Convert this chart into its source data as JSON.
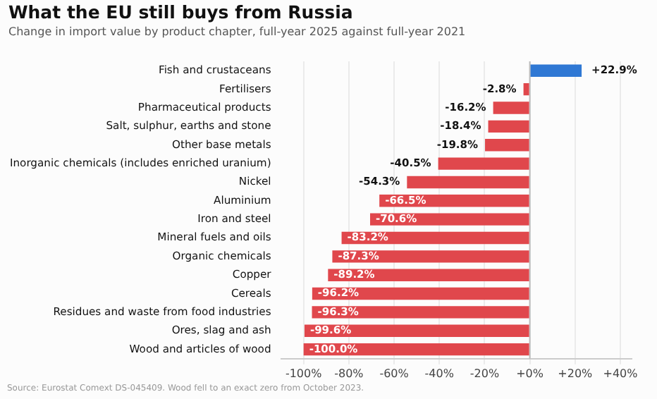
{
  "chart_data": {
    "type": "bar",
    "orientation": "horizontal",
    "title": "What the EU still buys from Russia",
    "subtitle": "Change in import value by product chapter, full-year 2025 against full-year 2021",
    "categories": [
      "Fish and crustaceans",
      "Fertilisers",
      "Pharmaceutical products",
      "Salt, sulphur, earths and stone",
      "Other base metals",
      "Inorganic chemicals (includes enriched uranium)",
      "Nickel",
      "Aluminium",
      "Iron and steel",
      "Mineral fuels and oils",
      "Organic chemicals",
      "Copper",
      "Cereals",
      "Residues and waste from food industries",
      "Ores, slag and ash",
      "Wood and articles of wood"
    ],
    "values": [
      22.9,
      -2.8,
      -16.2,
      -18.4,
      -19.8,
      -40.5,
      -54.3,
      -66.5,
      -70.6,
      -83.2,
      -87.3,
      -89.2,
      -96.2,
      -96.3,
      -99.6,
      -100.0
    ],
    "value_labels": [
      "+22.9%",
      "-2.8%",
      "-16.2%",
      "-18.4%",
      "-19.8%",
      "-40.5%",
      "-54.3%",
      "-66.5%",
      "-70.6%",
      "-83.2%",
      "-87.3%",
      "-89.2%",
      "-96.2%",
      "-96.3%",
      "-99.6%",
      "-100.0%"
    ],
    "colors": [
      "#2f78d4",
      "#e0474c",
      "#e0474c",
      "#e0474c",
      "#e0474c",
      "#e0474c",
      "#e0474c",
      "#e0474c",
      "#e0474c",
      "#e0474c",
      "#e0474c",
      "#e0474c",
      "#e0474c",
      "#e0474c",
      "#e0474c",
      "#e0474c"
    ],
    "xlim": [
      -110,
      45
    ],
    "xticks": [
      {
        "value": -100,
        "label": "-100%"
      },
      {
        "value": -80,
        "label": "-80%"
      },
      {
        "value": -60,
        "label": "-60%"
      },
      {
        "value": -40,
        "label": "-40%"
      },
      {
        "value": -20,
        "label": "-20%"
      },
      {
        "value": 0,
        "label": "+0%"
      },
      {
        "value": 20,
        "label": "+20%"
      },
      {
        "value": 40,
        "label": "+40%"
      }
    ],
    "grid": "x",
    "legend": false,
    "ref_lines": [
      {
        "axis": "x",
        "value": 0,
        "color": "#bbbbbb"
      }
    ],
    "annotations": [
      "Source: Eurostat Comext DS-045409. Wood fell to an exact zero from October 2023."
    ]
  }
}
